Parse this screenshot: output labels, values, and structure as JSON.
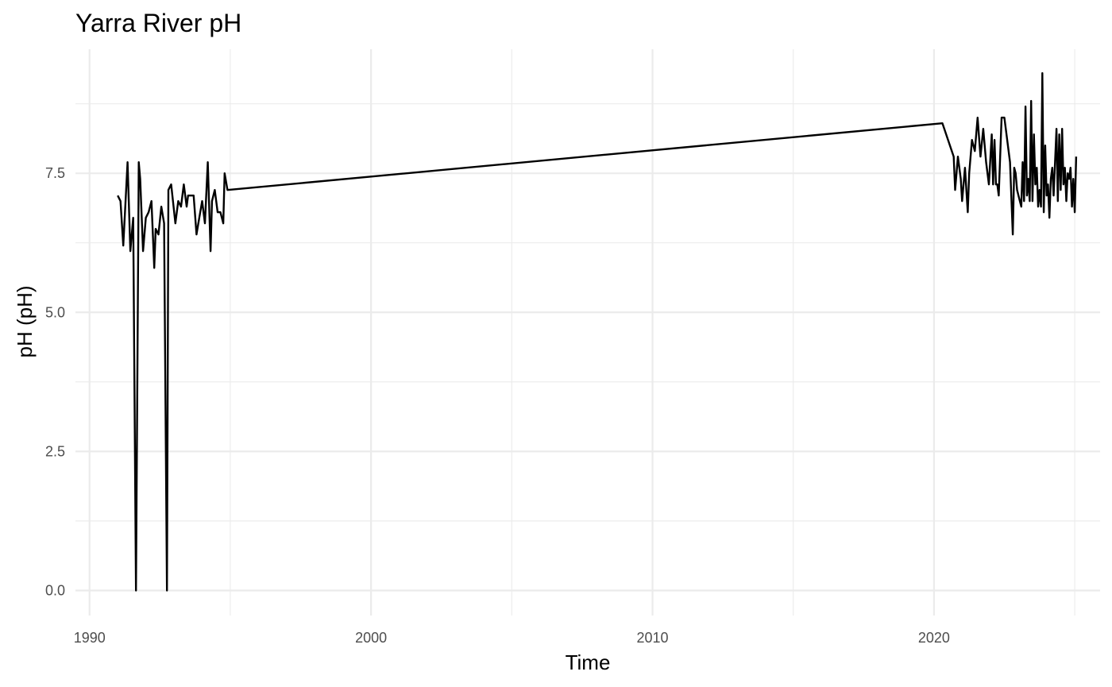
{
  "chart_data": {
    "type": "line",
    "title": "Yarra River pH",
    "xlabel": "Time",
    "ylabel": "pH (pH)",
    "x_ticks": [
      1990,
      2000,
      2010,
      2020
    ],
    "x_tick_labels": [
      "1990",
      "2000",
      "2010",
      "2020"
    ],
    "y_ticks": [
      0,
      2.5,
      5,
      7.5
    ],
    "y_tick_labels": [
      "0.0",
      "2.5",
      "5.0",
      "7.5"
    ],
    "xlim": [
      1989.5,
      2025.9
    ],
    "ylim": [
      -0.45,
      9.73
    ],
    "grid": true,
    "legend": "none",
    "line_color": "#000000",
    "x": [
      1991.0,
      1991.1,
      1991.2,
      1991.35,
      1991.45,
      1991.55,
      1991.65,
      1991.75,
      1991.8,
      1991.9,
      1992.0,
      1992.1,
      1992.2,
      1992.3,
      1992.35,
      1992.45,
      1992.55,
      1992.65,
      1992.75,
      1992.8,
      1992.9,
      1993.05,
      1993.15,
      1993.25,
      1993.35,
      1993.45,
      1993.5,
      1993.6,
      1993.7,
      1993.8,
      1993.9,
      1994.0,
      1994.1,
      1994.2,
      1994.3,
      1994.35,
      1994.45,
      1994.55,
      1994.65,
      1994.75,
      1994.8,
      1994.9,
      2020.3,
      2020.5,
      2020.7,
      2020.75,
      2020.85,
      2020.95,
      2021.0,
      2021.1,
      2021.2,
      2021.25,
      2021.35,
      2021.45,
      2021.55,
      2021.65,
      2021.75,
      2021.85,
      2021.95,
      2022.05,
      2022.1,
      2022.15,
      2022.2,
      2022.25,
      2022.3,
      2022.4,
      2022.5,
      2022.7,
      2022.8,
      2022.85,
      2022.9,
      2022.95,
      2023.05,
      2023.1,
      2023.15,
      2023.2,
      2023.25,
      2023.3,
      2023.35,
      2023.4,
      2023.45,
      2023.5,
      2023.55,
      2023.6,
      2023.65,
      2023.7,
      2023.75,
      2023.8,
      2023.85,
      2023.9,
      2023.95,
      2024.0,
      2024.05,
      2024.1,
      2024.15,
      2024.2,
      2024.25,
      2024.3,
      2024.35,
      2024.4,
      2024.45,
      2024.5,
      2024.55,
      2024.6,
      2024.65,
      2024.7,
      2024.75,
      2024.8,
      2024.85,
      2024.9,
      2024.95,
      2025.0,
      2025.05
    ],
    "y": [
      7.1,
      7.0,
      6.2,
      7.7,
      6.1,
      6.7,
      0.0,
      7.7,
      7.4,
      6.1,
      6.7,
      6.8,
      7.0,
      5.8,
      6.5,
      6.4,
      6.9,
      6.6,
      0.0,
      7.2,
      7.3,
      6.6,
      7.0,
      6.9,
      7.3,
      6.9,
      7.1,
      7.1,
      7.1,
      6.4,
      6.7,
      7.0,
      6.6,
      7.7,
      6.1,
      7.0,
      7.2,
      6.8,
      6.8,
      6.6,
      7.5,
      7.2,
      8.4,
      8.1,
      7.8,
      7.2,
      7.8,
      7.4,
      7.0,
      7.6,
      6.8,
      7.5,
      8.1,
      7.9,
      8.5,
      7.8,
      8.3,
      7.7,
      7.3,
      8.2,
      7.3,
      8.1,
      7.3,
      7.3,
      7.1,
      8.5,
      8.5,
      7.7,
      6.4,
      7.6,
      7.5,
      7.2,
      7.0,
      6.9,
      7.7,
      7.0,
      8.7,
      7.1,
      7.4,
      7.0,
      8.8,
      7.0,
      8.2,
      7.3,
      7.6,
      6.9,
      7.2,
      6.9,
      9.3,
      6.8,
      8.0,
      7.1,
      7.3,
      6.7,
      7.4,
      7.6,
      7.1,
      7.7,
      8.3,
      7.0,
      8.2,
      7.2,
      8.3,
      7.3,
      7.6,
      7.0,
      7.5,
      7.4,
      7.6,
      6.9,
      7.4,
      6.8,
      7.8
    ]
  }
}
